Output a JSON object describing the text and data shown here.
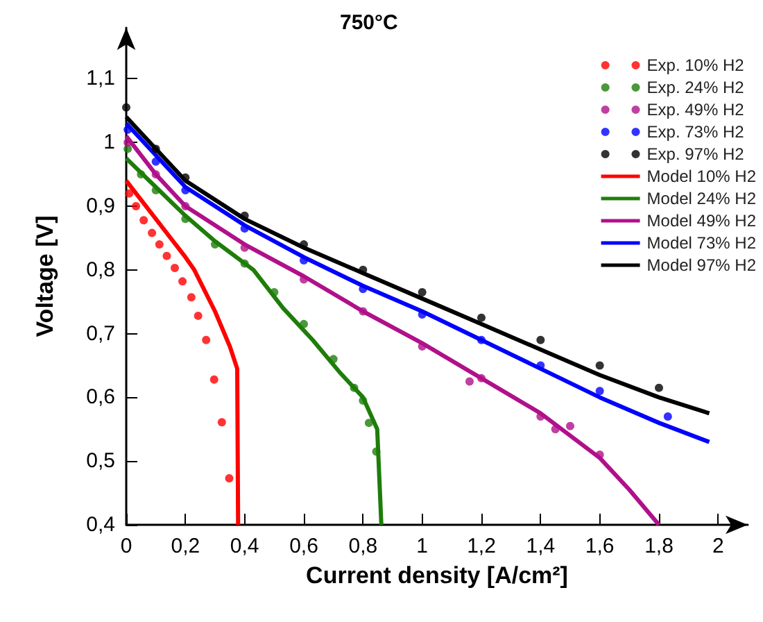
{
  "chart_data": {
    "type": "line",
    "title": "750°C",
    "xlabel": "Current density [A/cm²]",
    "ylabel": "Voltage [V]",
    "xlim": [
      0,
      2.1
    ],
    "ylim": [
      0.4,
      1.18
    ],
    "xticks": [
      {
        "value": 0,
        "label": "0"
      },
      {
        "value": 0.2,
        "label": "0,2"
      },
      {
        "value": 0.4,
        "label": "0,4"
      },
      {
        "value": 0.6,
        "label": "0,6"
      },
      {
        "value": 0.8,
        "label": "0,8"
      },
      {
        "value": 1,
        "label": "1"
      },
      {
        "value": 1.2,
        "label": "1,2"
      },
      {
        "value": 1.4,
        "label": "1,4"
      },
      {
        "value": 1.6,
        "label": "1,6"
      },
      {
        "value": 1.8,
        "label": "1,8"
      },
      {
        "value": 2,
        "label": "2"
      }
    ],
    "yticks": [
      {
        "value": 0.4,
        "label": "0,4"
      },
      {
        "value": 0.5,
        "label": "0,5"
      },
      {
        "value": 0.6,
        "label": "0,6"
      },
      {
        "value": 0.7,
        "label": "0,7"
      },
      {
        "value": 0.8,
        "label": "0,8"
      },
      {
        "value": 0.9,
        "label": "0,9"
      },
      {
        "value": 1,
        "label": "1"
      },
      {
        "value": 1.1,
        "label": "1,1"
      }
    ],
    "grid": false,
    "legend": "top right",
    "line_style": "solid",
    "series": [
      {
        "name": "Exp. 10% H2",
        "type": "scatter",
        "marker": "circle",
        "color": "#ff0000",
        "x": [
          0.01,
          0.033,
          0.059,
          0.087,
          0.112,
          0.137,
          0.164,
          0.19,
          0.22,
          0.243,
          0.27,
          0.297,
          0.323,
          0.348
        ],
        "values": [
          0.92,
          0.9,
          0.878,
          0.858,
          0.84,
          0.822,
          0.803,
          0.782,
          0.757,
          0.728,
          0.69,
          0.628,
          0.561,
          0.473
        ]
      },
      {
        "name": "Exp. 24% H2",
        "type": "scatter",
        "marker": "circle",
        "color": "#1e7d0a",
        "x": [
          0.005,
          0.05,
          0.1,
          0.2,
          0.3,
          0.4,
          0.5,
          0.6,
          0.7,
          0.77,
          0.8,
          0.82,
          0.845
        ],
        "values": [
          0.99,
          0.95,
          0.925,
          0.88,
          0.84,
          0.81,
          0.765,
          0.715,
          0.66,
          0.615,
          0.595,
          0.56,
          0.515
        ]
      },
      {
        "name": "Exp. 49% H2",
        "type": "scatter",
        "marker": "circle",
        "color": "#b0108a",
        "x": [
          0.005,
          0.1,
          0.2,
          0.4,
          0.6,
          0.8,
          1.0,
          1.16,
          1.2,
          1.4,
          1.45,
          1.5,
          1.6
        ],
        "values": [
          1.0,
          0.95,
          0.9,
          0.835,
          0.785,
          0.735,
          0.68,
          0.625,
          0.63,
          0.57,
          0.55,
          0.555,
          0.51
        ]
      },
      {
        "name": "Exp. 73% H2",
        "type": "scatter",
        "marker": "circle",
        "color": "#0000ff",
        "x": [
          0.005,
          0.1,
          0.2,
          0.4,
          0.6,
          0.8,
          1.0,
          1.2,
          1.4,
          1.6,
          1.83
        ],
        "values": [
          1.02,
          0.97,
          0.925,
          0.865,
          0.815,
          0.77,
          0.73,
          0.69,
          0.65,
          0.61,
          0.57
        ]
      },
      {
        "name": "Exp. 97% H2",
        "type": "scatter",
        "marker": "circle",
        "color": "#000000",
        "x": [
          0,
          0.1,
          0.2,
          0.4,
          0.6,
          0.8,
          1.0,
          1.2,
          1.4,
          1.6,
          1.8
        ],
        "values": [
          1.055,
          0.99,
          0.945,
          0.885,
          0.84,
          0.8,
          0.765,
          0.725,
          0.69,
          0.65,
          0.615
        ]
      },
      {
        "name": "Model 10% H2",
        "color": "#ff0000",
        "x": [
          0,
          0.1,
          0.2,
          0.23,
          0.3,
          0.35,
          0.375,
          0.378
        ],
        "values": [
          0.94,
          0.88,
          0.82,
          0.8,
          0.735,
          0.68,
          0.645,
          0.4
        ]
      },
      {
        "name": "Model 24% H2",
        "color": "#1e7d0a",
        "x": [
          0,
          0.1,
          0.2,
          0.3,
          0.43,
          0.53,
          0.63,
          0.72,
          0.8,
          0.848,
          0.862
        ],
        "values": [
          0.975,
          0.93,
          0.885,
          0.845,
          0.8,
          0.74,
          0.69,
          0.64,
          0.6,
          0.55,
          0.4
        ]
      },
      {
        "name": "Model 49% H2",
        "color": "#b0108a",
        "x": [
          0,
          0.1,
          0.2,
          0.4,
          0.6,
          0.8,
          1.0,
          1.2,
          1.4,
          1.6,
          1.7,
          1.8
        ],
        "values": [
          1.01,
          0.95,
          0.9,
          0.84,
          0.79,
          0.735,
          0.685,
          0.63,
          0.575,
          0.505,
          0.455,
          0.4
        ]
      },
      {
        "name": "Model 73% H2",
        "color": "#0000ff",
        "x": [
          0,
          0.2,
          0.4,
          0.6,
          0.8,
          1.0,
          1.2,
          1.4,
          1.6,
          1.8,
          1.97
        ],
        "values": [
          1.03,
          0.93,
          0.87,
          0.82,
          0.775,
          0.735,
          0.69,
          0.645,
          0.6,
          0.56,
          0.53
        ]
      },
      {
        "name": "Model 97% H2",
        "color": "#000000",
        "x": [
          0,
          0.2,
          0.4,
          0.6,
          0.8,
          1.0,
          1.2,
          1.4,
          1.6,
          1.8,
          1.97
        ],
        "values": [
          1.04,
          0.94,
          0.88,
          0.835,
          0.795,
          0.755,
          0.715,
          0.675,
          0.635,
          0.6,
          0.575
        ]
      }
    ]
  }
}
